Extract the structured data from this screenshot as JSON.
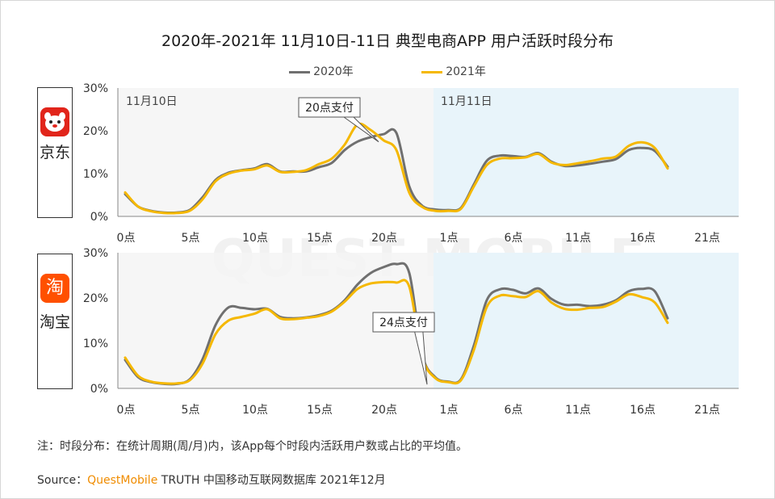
{
  "title": "2020年-2021年 11月10日-11日 典型电商APP 用户活跃时段分布",
  "legend": [
    {
      "name": "2020年",
      "color": "#707070"
    },
    {
      "name": "2021年",
      "color": "#f5b800"
    }
  ],
  "apps": [
    {
      "name": "京东",
      "icon": "jd-dog-icon"
    },
    {
      "name": "淘宝",
      "icon": "taobao-icon",
      "icon_char": "淘"
    }
  ],
  "note": "注：时段分布：在统计周期(周/月)内，该App每个时段内活跃用户数或占比的平均值。",
  "source": {
    "label": "Source：",
    "brand": "QuestMobile",
    "rest": " TRUTH 中国移动互联网数据库 2021年12月"
  },
  "watermark": "QUEST MOBILE",
  "chart_data": [
    {
      "type": "line",
      "app": "京东",
      "day_labels": [
        "11月10日",
        "11月11日"
      ],
      "annotation": {
        "text": "20点支付",
        "hour": 20
      },
      "xticks": [
        "0点",
        "5点",
        "10点",
        "15点",
        "20点",
        "1点",
        "6点",
        "11点",
        "16点",
        "21点"
      ],
      "yticks": [
        "0%",
        "10%",
        "20%",
        "30%"
      ],
      "ylim": [
        0,
        30
      ],
      "x": [
        0,
        1,
        2,
        3,
        4,
        5,
        6,
        7,
        8,
        9,
        10,
        11,
        12,
        13,
        14,
        15,
        16,
        17,
        18,
        19,
        20,
        21,
        22,
        23,
        24,
        25,
        26,
        27,
        28,
        29,
        30,
        31,
        32,
        33,
        34,
        35,
        36,
        37,
        38,
        39,
        40,
        41,
        42,
        43,
        44,
        45,
        46,
        47
      ],
      "series": [
        {
          "name": "2020年",
          "values": [
            5.2,
            2.3,
            1.3,
            0.9,
            0.9,
            1.5,
            4.5,
            8.5,
            10.2,
            10.8,
            11.2,
            12.2,
            10.5,
            10.5,
            10.5,
            11.5,
            12.5,
            15.5,
            17.5,
            18.5,
            19.2,
            19.5,
            7.0,
            2.5,
            1.6,
            1.5,
            2.0,
            7.5,
            13.0,
            14.2,
            14.1,
            13.9,
            14.8,
            12.8,
            11.8,
            11.9,
            12.3,
            12.8,
            13.4,
            15.5,
            16.0,
            15.3,
            11.6,
            0,
            0,
            0,
            0,
            0
          ]
        },
        {
          "name": "2021年",
          "values": [
            5.6,
            2.3,
            1.2,
            0.8,
            0.8,
            1.3,
            4.0,
            8.2,
            10.0,
            10.7,
            11.0,
            11.9,
            10.4,
            10.4,
            10.8,
            12.2,
            13.5,
            16.8,
            21.5,
            20.2,
            17.8,
            15.5,
            5.5,
            2.2,
            1.3,
            1.3,
            1.8,
            7.0,
            12.0,
            13.5,
            13.6,
            13.8,
            14.6,
            12.6,
            12.0,
            12.4,
            12.9,
            13.5,
            14.0,
            16.5,
            17.3,
            16.0,
            11.2,
            0,
            0,
            0,
            0,
            0
          ]
        }
      ]
    },
    {
      "type": "line",
      "app": "淘宝",
      "annotation": {
        "text": "24点支付",
        "hour": 24
      },
      "xticks": [
        "0点",
        "5点",
        "10点",
        "15点",
        "20点",
        "1点",
        "6点",
        "11点",
        "16点",
        "21点"
      ],
      "yticks": [
        "0%",
        "10%",
        "20%",
        "30%"
      ],
      "ylim": [
        0,
        30
      ],
      "x": [
        0,
        1,
        2,
        3,
        4,
        5,
        6,
        7,
        8,
        9,
        10,
        11,
        12,
        13,
        14,
        15,
        16,
        17,
        18,
        19,
        20,
        21,
        22,
        23,
        24,
        25,
        26,
        27,
        28,
        29,
        30,
        31,
        32,
        33,
        34,
        35,
        36,
        37,
        38,
        39,
        40,
        41,
        42,
        43,
        44,
        45,
        46,
        47
      ],
      "series": [
        {
          "name": "2020年",
          "values": [
            6.3,
            2.5,
            1.4,
            1.0,
            1.0,
            2.0,
            6.5,
            14.0,
            17.9,
            17.8,
            17.5,
            17.6,
            15.8,
            15.5,
            15.7,
            16.2,
            17.2,
            19.5,
            23.0,
            25.5,
            26.8,
            27.5,
            25.5,
            7.5,
            2.5,
            1.5,
            2.0,
            9.5,
            19.5,
            21.9,
            21.8,
            21.0,
            22.1,
            19.8,
            18.5,
            18.5,
            18.2,
            18.5,
            19.5,
            21.5,
            22.0,
            21.5,
            15.5,
            0,
            0,
            0,
            0,
            0
          ]
        },
        {
          "name": "2021年",
          "values": [
            6.8,
            2.8,
            1.5,
            1.1,
            1.1,
            1.8,
            5.5,
            12.0,
            15.0,
            15.8,
            16.5,
            17.5,
            15.5,
            15.3,
            15.6,
            16.0,
            17.0,
            19.2,
            22.0,
            23.2,
            23.5,
            23.4,
            22.5,
            7.0,
            2.3,
            1.4,
            1.8,
            8.5,
            18.0,
            20.5,
            20.4,
            20.2,
            21.5,
            19.0,
            17.6,
            17.4,
            17.8,
            18.0,
            19.2,
            20.8,
            20.2,
            19.0,
            14.5,
            0,
            0,
            0,
            0,
            0
          ]
        }
      ]
    }
  ]
}
